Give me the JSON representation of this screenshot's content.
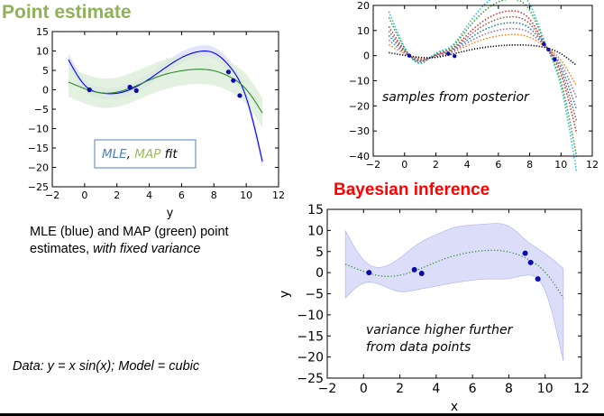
{
  "headings": {
    "point_estimate": "Point estimate",
    "bayesian_inference": "Bayesian inference"
  },
  "notes": {
    "point_desc_plain": "MLE (blue) and MAP (green) point estimates, ",
    "point_desc_italic": "with fixed variance",
    "data_model": "Data: y = x sin(x); Model = cubic"
  },
  "colors": {
    "heading_green": "#8db356",
    "heading_red": "#ff0000",
    "mle_blue": "#0000ff",
    "map_green": "#2e8b2e",
    "band_blue": "#d8daf8",
    "band_green": "#d9ecd6",
    "point_dark_blue": "#0a0aa8"
  },
  "chart_data": [
    {
      "type": "line",
      "panel": "point-estimate",
      "xlabel": "y",
      "ylabel": "",
      "xlim": [
        -2,
        12
      ],
      "ylim": [
        -25,
        15
      ],
      "xticks": [
        "−2",
        "0",
        "2",
        "4",
        "6",
        "8",
        "10",
        "12"
      ],
      "yticks": [
        "15",
        "10",
        "5",
        "0",
        "−5",
        "−10",
        "−15",
        "−20",
        "−25"
      ],
      "legend_box": {
        "mle": "MLE",
        "sep": ",",
        "map": "MAP",
        "tail": "fit"
      },
      "points": [
        [
          0.3,
          0.0
        ],
        [
          2.8,
          0.7
        ],
        [
          3.2,
          -0.2
        ],
        [
          8.9,
          4.6
        ],
        [
          9.2,
          2.4
        ],
        [
          9.6,
          -1.5
        ]
      ],
      "series": [
        {
          "name": "MLE",
          "color": "blue",
          "x": [
            -1,
            0,
            1,
            2,
            3,
            4,
            5,
            6,
            7,
            8,
            9,
            10,
            11
          ],
          "y": [
            7.8,
            1.2,
            -0.8,
            -0.9,
            0.4,
            2.8,
            5.7,
            8.3,
            9.8,
            9.5,
            5.9,
            -2.0,
            -18.5
          ],
          "band": 1.5
        },
        {
          "name": "MAP",
          "color": "green",
          "x": [
            -1,
            0,
            1,
            2,
            3,
            4,
            5,
            6,
            7,
            8,
            9,
            10,
            11
          ],
          "y": [
            2.0,
            0.3,
            -0.8,
            -0.6,
            0.7,
            2.5,
            4.0,
            4.9,
            5.3,
            4.9,
            3.3,
            0.1,
            -6.0
          ],
          "band": 3.8
        }
      ]
    },
    {
      "type": "line",
      "panel": "samples-from-posterior",
      "annotation": "samples from posterior",
      "xlim": [
        -2,
        12
      ],
      "ylim": [
        -40,
        20
      ],
      "xticks": [
        "−2",
        "0",
        "2",
        "4",
        "6",
        "8",
        "10",
        "12"
      ],
      "yticks": [
        "20",
        "10",
        "0",
        "−10",
        "−20",
        "−30",
        "−40"
      ],
      "x": [
        -1,
        0,
        1,
        2,
        3,
        4,
        5,
        6,
        7,
        8,
        9,
        10,
        11
      ],
      "mean": [
        2.0,
        0.3,
        -0.8,
        -0.6,
        0.7,
        2.5,
        4.0,
        4.9,
        5.3,
        4.9,
        3.3,
        0.1,
        -6.0
      ],
      "sample_scales": [
        1.0,
        2.2,
        0.4,
        1.6,
        0.7,
        2.6,
        1.3
      ],
      "sample_colors": [
        "#1f77b4",
        "#2ca02c",
        "#ff7f0e",
        "#d62728",
        "#9467bd",
        "#17becf",
        "#8c564b"
      ],
      "dense_line_color": "#000000",
      "points": [
        [
          0.3,
          0.0
        ],
        [
          2.8,
          0.7
        ],
        [
          3.2,
          -0.2
        ],
        [
          8.9,
          4.6
        ],
        [
          9.2,
          2.4
        ],
        [
          9.6,
          -1.5
        ]
      ]
    },
    {
      "type": "line",
      "panel": "bayesian-inference",
      "xlabel": "x",
      "ylabel": "y",
      "annotation": [
        "variance higher further",
        "from data points"
      ],
      "xlim": [
        -2,
        12
      ],
      "ylim": [
        -25,
        15
      ],
      "xticks": [
        "−2",
        "0",
        "2",
        "4",
        "6",
        "8",
        "10",
        "12"
      ],
      "yticks": [
        "15",
        "10",
        "5",
        "0",
        "−5",
        "−10",
        "−15",
        "−20",
        "−25"
      ],
      "x": [
        -1,
        0,
        1,
        2,
        3,
        4,
        5,
        6,
        7,
        8,
        9,
        10,
        11
      ],
      "mean": [
        2.0,
        0.3,
        -0.8,
        -0.6,
        0.7,
        2.5,
        4.0,
        4.9,
        5.3,
        4.9,
        3.3,
        0.1,
        -6.0
      ],
      "upper": [
        10.0,
        3.0,
        1.3,
        3.5,
        6.8,
        9.0,
        10.7,
        11.3,
        11.6,
        11.0,
        7.5,
        4.5,
        1.0
      ],
      "lower": [
        -6.0,
        -2.5,
        -3.0,
        -4.5,
        -4.0,
        -3.2,
        -2.4,
        -1.8,
        -1.5,
        -1.4,
        -0.6,
        -4.3,
        -21.0
      ],
      "points": [
        [
          0.3,
          0.0
        ],
        [
          2.8,
          0.7
        ],
        [
          3.2,
          -0.2
        ],
        [
          8.9,
          4.6
        ],
        [
          9.2,
          2.4
        ],
        [
          9.6,
          -1.5
        ]
      ]
    }
  ]
}
